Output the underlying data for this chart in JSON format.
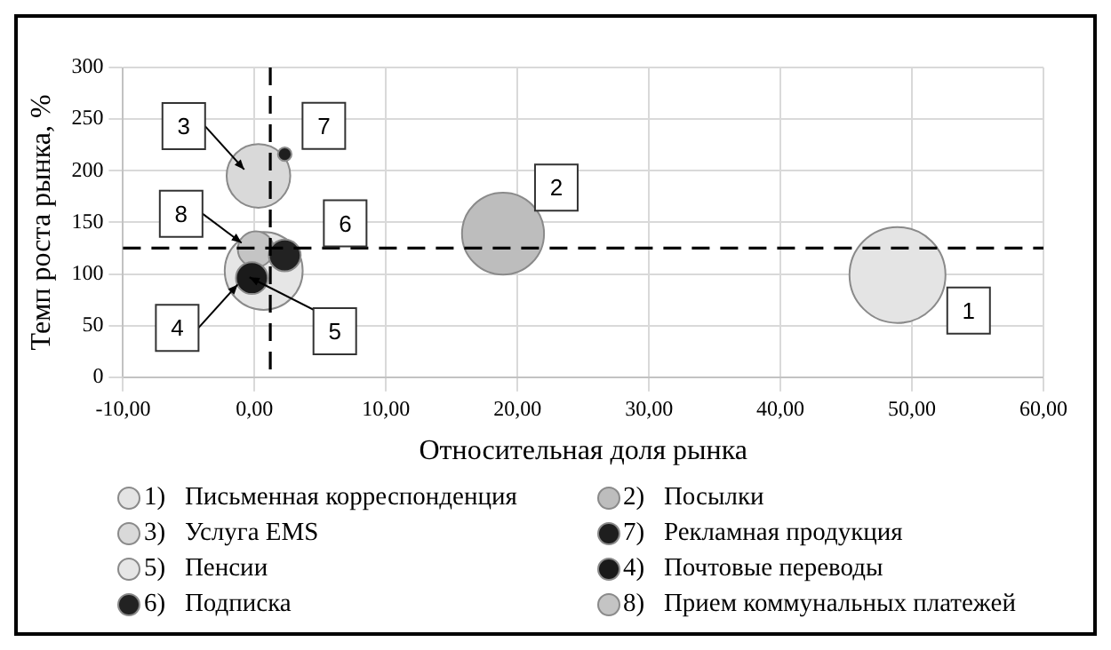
{
  "chart_data": {
    "type": "bubble",
    "xlabel": "Относительная доля рынка",
    "ylabel": "Темп роста рынка, %",
    "xlim": [
      -10,
      60
    ],
    "xticks": [
      {
        "value": -10,
        "label": "-10,00"
      },
      {
        "value": 0,
        "label": "0,00"
      },
      {
        "value": 10,
        "label": "10,00"
      },
      {
        "value": 20,
        "label": "20,00"
      },
      {
        "value": 30,
        "label": "30,00"
      },
      {
        "value": 40,
        "label": "40,00"
      },
      {
        "value": 50,
        "label": "50,00"
      },
      {
        "value": 60,
        "label": "60,00"
      }
    ],
    "ylim": [
      0,
      300
    ],
    "yticks": [
      0,
      50,
      100,
      150,
      200,
      250,
      300
    ],
    "grid": true,
    "legend": "bottom",
    "series": [
      {
        "name": "1)   Письменная корреспонденция",
        "color": "#e4e4e4",
        "x": [
          48.9
        ],
        "values": [
          99
        ],
        "sizes": [
          1
        ]
      },
      {
        "name": "2)   Посылки",
        "color": "#bdbdbd",
        "x": [
          18.9
        ],
        "values": [
          139
        ],
        "sizes": [
          0.73
        ]
      },
      {
        "name": "3)   Услуга EMS",
        "color": "#d9d9d9",
        "x": [
          0.3
        ],
        "values": [
          195
        ],
        "sizes": [
          0.44
        ]
      },
      {
        "name": "7)   Рекламная продукция",
        "color": "#1e1e1e",
        "x": [
          2.3
        ],
        "values": [
          216
        ],
        "sizes": [
          0.02
        ]
      },
      {
        "name": "5)   Пенсии",
        "color": "#e6e6e6",
        "x": [
          0.7
        ],
        "values": [
          103
        ],
        "sizes": [
          0.66
        ]
      },
      {
        "name": "4)   Почтовые переводы",
        "color": "#1a1a1a",
        "x": [
          -0.2
        ],
        "values": [
          96
        ],
        "sizes": [
          0.11
        ]
      },
      {
        "name": "6)   Подписка",
        "color": "#222222",
        "x": [
          2.3
        ],
        "values": [
          118
        ],
        "sizes": [
          0.11
        ]
      },
      {
        "name": "8)   Прием коммунальных платежей",
        "color": "#c4c4c4",
        "x": [
          0.1
        ],
        "values": [
          124
        ],
        "sizes": [
          0.14
        ]
      }
    ],
    "ref_lines": [
      {
        "axis": "x",
        "value": 1.2,
        "color": "#000000",
        "line_style": "dashed"
      },
      {
        "axis": "y",
        "value": 125,
        "color": "#000000",
        "line_style": "dashed"
      }
    ],
    "annotations": [
      {
        "text": "1",
        "x": 48.9,
        "y": 99
      },
      {
        "text": "2",
        "x": 18.9,
        "y": 139
      },
      {
        "text": "3",
        "x": 0.3,
        "y": 195
      },
      {
        "text": "7",
        "x": 2.3,
        "y": 216
      },
      {
        "text": "5",
        "x": 0.7,
        "y": 103
      },
      {
        "text": "4",
        "x": -0.2,
        "y": 96
      },
      {
        "text": "6",
        "x": 2.3,
        "y": 118
      },
      {
        "text": "8",
        "x": 0.1,
        "y": 124
      }
    ]
  }
}
